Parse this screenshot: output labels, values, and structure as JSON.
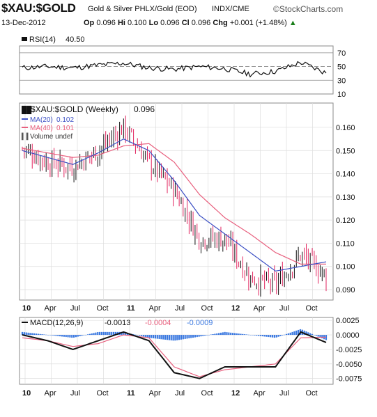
{
  "header": {
    "symbol": "$XAU:$GOLD",
    "description": "Gold & Silver PHLX/Gold (EOD)",
    "exchange": "INDX/CME",
    "brand": "©StockCharts.com",
    "date": "13-Dec-2012",
    "open_label": "Op",
    "open": "0.096",
    "high_label": "Hi",
    "high": "0.100",
    "low_label": "Lo",
    "low": "0.096",
    "close_label": "Cl",
    "close": "0.096",
    "change_label": "Chg",
    "change": "+0.001 (+1.48%)",
    "change_marker": "▲"
  },
  "colors": {
    "rsi": "#111111",
    "price": "#111111",
    "up": "#111111",
    "down": "#e2245f",
    "ma20": "#3b4fc4",
    "ma40": "#e8607e",
    "macd": "#111111",
    "signal": "#e8607e",
    "histogram": "#3a78e0",
    "grid": "#dddddd"
  },
  "chart_data": [
    {
      "type": "line",
      "title": "RSI(14) 40.50",
      "legend_symbol": "RSI(14)",
      "legend_value": "40.50",
      "ylim": [
        10,
        80
      ],
      "reference_lines": [
        70,
        50,
        30
      ],
      "y_ticks": [
        10,
        30,
        50,
        70
      ],
      "x": [
        "10",
        "Apr",
        "Jul",
        "Oct",
        "11",
        "Apr",
        "Jul",
        "Oct",
        "12",
        "Apr",
        "Jul",
        "Oct",
        "Dec"
      ],
      "values": [
        48,
        50,
        48,
        52,
        55,
        48,
        46,
        50,
        47,
        39,
        43,
        56,
        40.5
      ]
    },
    {
      "type": "candlestick",
      "title": "$XAU:$GOLD (Weekly) 0.096",
      "legend_symbol": "$XAU:$GOLD (Weekly)",
      "legend_value": "0.096",
      "ylim": [
        0.0855,
        0.1705
      ],
      "y_ticks": [
        0.09,
        0.1,
        0.11,
        0.12,
        0.13,
        0.14,
        0.15,
        0.16
      ],
      "x_ticks": [
        "10",
        "Apr",
        "Jul",
        "Oct",
        "11",
        "Apr",
        "Jul",
        "Oct",
        "12",
        "Apr",
        "Jul",
        "Oct"
      ],
      "legend": [
        {
          "name": "MA(20)",
          "value": "0.102"
        },
        {
          "name": "MA(40)",
          "value": "0.101"
        },
        {
          "name": "Volume undef",
          "value": ""
        }
      ],
      "series": [
        {
          "name": "$XAU:$GOLD",
          "x": [
            "10",
            "Apr",
            "Jul",
            "Oct",
            "11",
            "Apr",
            "Jul",
            "Oct",
            "12",
            "Apr",
            "Jul",
            "Oct",
            "Dec"
          ],
          "values": [
            0.151,
            0.145,
            0.143,
            0.15,
            0.16,
            0.145,
            0.133,
            0.112,
            0.112,
            0.095,
            0.092,
            0.105,
            0.096
          ]
        },
        {
          "name": "MA(20)",
          "x": [
            "10",
            "Apr",
            "Jul",
            "Oct",
            "11",
            "Apr",
            "Jul",
            "Oct",
            "12",
            "Apr",
            "Jul",
            "Oct",
            "Dec"
          ],
          "values": [
            0.15,
            0.147,
            0.144,
            0.149,
            0.155,
            0.15,
            0.137,
            0.122,
            0.114,
            0.106,
            0.098,
            0.1,
            0.102
          ]
        },
        {
          "name": "MA(40)",
          "x": [
            "10",
            "Apr",
            "Jul",
            "Oct",
            "11",
            "Apr",
            "Jul",
            "Oct",
            "12",
            "Apr",
            "Jul",
            "Oct",
            "Dec"
          ],
          "values": [
            0.151,
            0.149,
            0.147,
            0.148,
            0.152,
            0.153,
            0.145,
            0.131,
            0.121,
            0.114,
            0.106,
            0.101,
            0.101
          ]
        }
      ]
    },
    {
      "type": "line",
      "title": "MACD(12,26,9) -0.0013, -0.0004, -0.0009",
      "legend_symbol": "MACD(12,26,9)",
      "legend_values": [
        "-0.0013",
        "-0.0004",
        "-0.0009"
      ],
      "ylim": [
        -0.0085,
        0.003
      ],
      "y_ticks": [
        0.0025,
        0.0,
        -0.0025,
        -0.005,
        -0.0075
      ],
      "y_tick_labels": [
        "0.0025",
        "0.0000",
        "-0.0025",
        "-0.0050",
        "-0.0075"
      ],
      "x_ticks": [
        "10",
        "Apr",
        "Jul",
        "Oct",
        "11",
        "Apr",
        "Jul",
        "Oct",
        "12",
        "Apr",
        "Jul",
        "Oct"
      ],
      "series": [
        {
          "name": "MACD",
          "x": [
            "10",
            "Apr",
            "Jul",
            "Oct",
            "11",
            "Apr",
            "Jul",
            "Oct",
            "12",
            "Apr",
            "Jul",
            "Oct",
            "Dec"
          ],
          "values": [
            0.0,
            -0.001,
            -0.0025,
            -0.001,
            0.0005,
            -0.001,
            -0.0065,
            -0.0075,
            -0.0055,
            -0.0055,
            -0.0055,
            0.0005,
            -0.0013
          ]
        },
        {
          "name": "Signal",
          "x": [
            "10",
            "Apr",
            "Jul",
            "Oct",
            "11",
            "Apr",
            "Jul",
            "Oct",
            "12",
            "Apr",
            "Jul",
            "Oct",
            "Dec"
          ],
          "values": [
            -0.0005,
            -0.001,
            -0.002,
            -0.0015,
            0.0,
            -0.0005,
            -0.0055,
            -0.0072,
            -0.006,
            -0.0055,
            -0.005,
            -0.0005,
            -0.0004
          ]
        },
        {
          "name": "Histogram",
          "x": [
            "10",
            "Apr",
            "Jul",
            "Oct",
            "11",
            "Apr",
            "Jul",
            "Oct",
            "12",
            "Apr",
            "Jul",
            "Oct",
            "Dec"
          ],
          "values": [
            0.0005,
            0.0,
            -0.0005,
            0.0005,
            0.0005,
            -0.0005,
            -0.001,
            -0.0003,
            0.0005,
            0.0,
            -0.0005,
            0.001,
            -0.0009
          ]
        }
      ]
    }
  ]
}
